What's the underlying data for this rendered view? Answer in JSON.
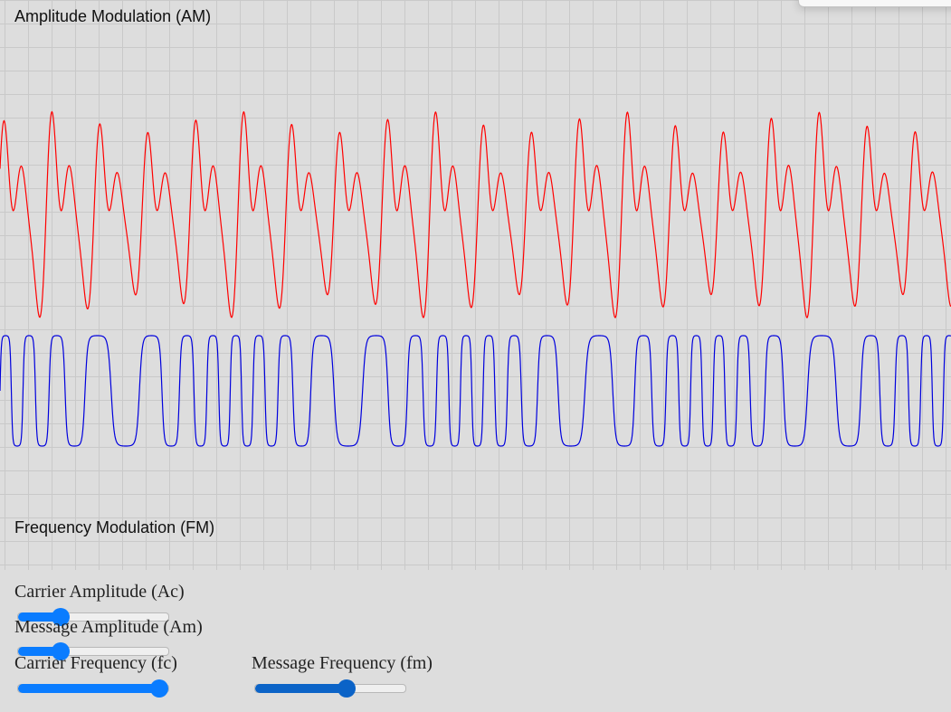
{
  "am": {
    "title": "Amplitude Modulation (AM)",
    "color": "#ff0000"
  },
  "fm": {
    "title": "Frequency Modulation (FM)",
    "color": "#0000dd"
  },
  "controls": {
    "carrier_amplitude": {
      "label": "Carrier Amplitude (Ac)",
      "value": 0.25
    },
    "message_amplitude": {
      "label": "Message Amplitude (Am)",
      "value": 0.25
    },
    "carrier_frequency": {
      "label": "Carrier Frequency (fc)",
      "value": 1.0
    },
    "message_frequency": {
      "label": "Message Frequency (fm)",
      "value": 0.62
    }
  },
  "accent_color": "#0a7cff"
}
